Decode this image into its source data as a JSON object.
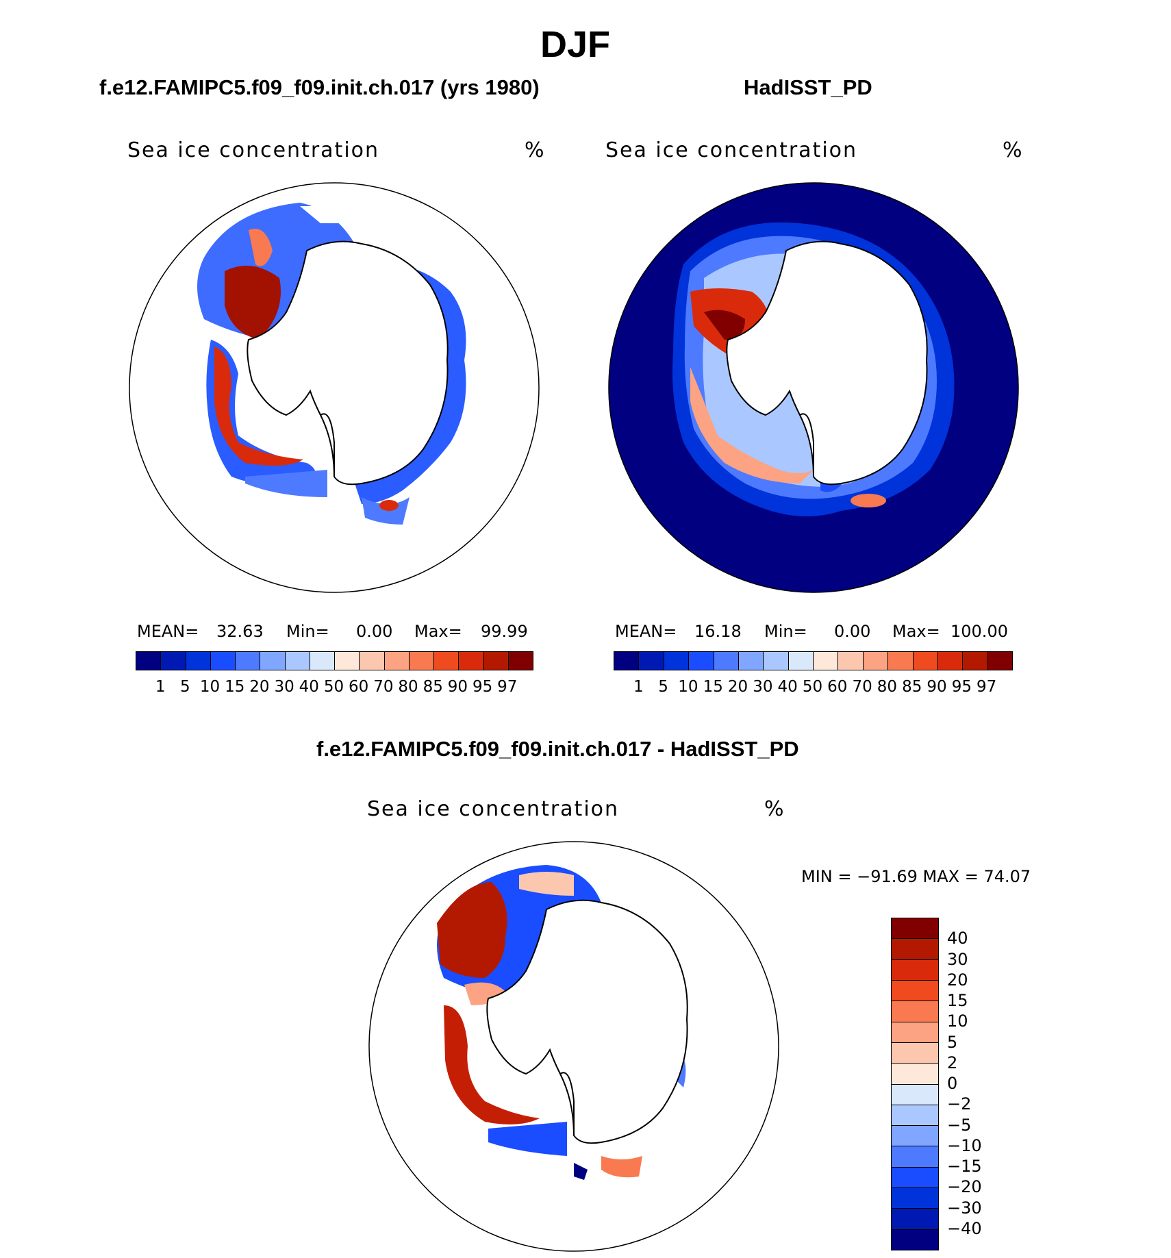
{
  "title": "DJF",
  "panels": {
    "model": {
      "title": "f.e12.FAMIPC5.f09_f09.init.ch.017 (yrs 1980)",
      "label": "Sea ice concentration",
      "units": "%",
      "stats": {
        "mean_label": "MEAN=",
        "mean": "32.63",
        "min_label": "Min=",
        "min": "0.00",
        "max_label": "Max=",
        "max": "99.99"
      }
    },
    "obs": {
      "title": "HadISST_PD",
      "label": "Sea ice concentration",
      "units": "%",
      "stats": {
        "mean_label": "MEAN=",
        "mean": "16.18",
        "min_label": "Min=",
        "min": "0.00",
        "max_label": "Max=",
        "max": "100.00"
      }
    },
    "diff": {
      "title": "f.e12.FAMIPC5.f09_f09.init.ch.017 - HadISST_PD",
      "label": "Sea ice concentration",
      "units": "%",
      "minmax": "MIN = −91.69 MAX =   74.07"
    }
  },
  "colorbars": {
    "concentration": {
      "colors": [
        "#000080",
        "#0019b3",
        "#0033d9",
        "#1a4dff",
        "#4d7aff",
        "#80a6ff",
        "#aac8ff",
        "#d9e9fb",
        "#fde8da",
        "#fcc7af",
        "#fba382",
        "#f97a50",
        "#f04a1f",
        "#d92b0b",
        "#b31900",
        "#800000"
      ],
      "levels": [
        "1",
        "5",
        "10",
        "15",
        "20",
        "30",
        "40",
        "50",
        "60",
        "70",
        "80",
        "85",
        "90",
        "95",
        "97"
      ]
    },
    "difference": {
      "colors": [
        "#800000",
        "#b31900",
        "#d92b0b",
        "#f04a1f",
        "#f97a50",
        "#fba382",
        "#fcc7af",
        "#fde8da",
        "#d9e9fb",
        "#aac8ff",
        "#80a6ff",
        "#4d7aff",
        "#1a4dff",
        "#0033d9",
        "#0019b3",
        "#000080"
      ],
      "levels": [
        "40",
        "30",
        "20",
        "15",
        "10",
        "5",
        "2",
        "0",
        "−2",
        "−5",
        "−10",
        "−15",
        "−20",
        "−30",
        "−40"
      ]
    }
  },
  "chart_data": [
    {
      "type": "heatmap",
      "title": "f.e12.FAMIPC5.f09_f09.init.ch.017 (yrs 1980)",
      "projection": "south-polar stereographic",
      "variable": "Sea ice concentration",
      "units": "%",
      "mean": 32.63,
      "min": 0.0,
      "max": 99.99,
      "contour_levels": [
        1,
        5,
        10,
        15,
        20,
        30,
        40,
        50,
        60,
        70,
        80,
        85,
        90,
        95,
        97
      ]
    },
    {
      "type": "heatmap",
      "title": "HadISST_PD",
      "projection": "south-polar stereographic",
      "variable": "Sea ice concentration",
      "units": "%",
      "mean": 16.18,
      "min": 0.0,
      "max": 100.0,
      "contour_levels": [
        1,
        5,
        10,
        15,
        20,
        30,
        40,
        50,
        60,
        70,
        80,
        85,
        90,
        95,
        97
      ]
    },
    {
      "type": "heatmap",
      "title": "f.e12.FAMIPC5.f09_f09.init.ch.017 - HadISST_PD",
      "projection": "south-polar stereographic",
      "variable": "Sea ice concentration",
      "units": "%",
      "min": -91.69,
      "max": 74.07,
      "contour_levels": [
        40,
        30,
        20,
        15,
        10,
        5,
        2,
        0,
        -2,
        -5,
        -10,
        -15,
        -20,
        -30,
        -40
      ]
    }
  ]
}
